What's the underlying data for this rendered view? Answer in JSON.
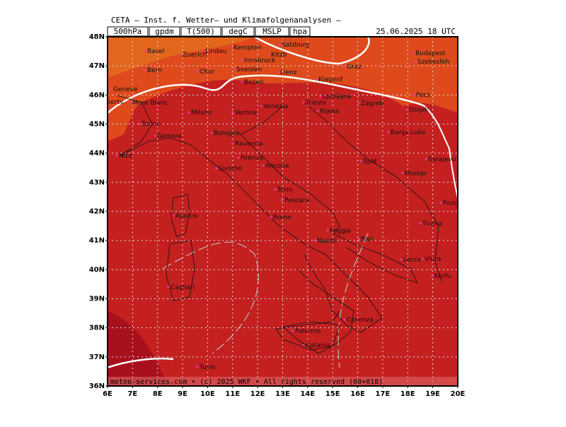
{
  "header": {
    "title": "CETA — Inst. f. Wetter— und Klimafolgenanalysen —",
    "fields": [
      "500hPa",
      "gpdm",
      "T(500)",
      "degC",
      "MSLP",
      "hpa"
    ],
    "timestamp": "25.06.2025 18 UTC"
  },
  "map": {
    "lat_labels": [
      "48N",
      "47N",
      "46N",
      "45N",
      "44N",
      "43N",
      "42N",
      "41N",
      "40N",
      "39N",
      "38N",
      "37N",
      "36N"
    ],
    "lon_labels": [
      "6E",
      "7E",
      "8E",
      "9E",
      "10E",
      "11E",
      "12E",
      "13E",
      "14E",
      "15E",
      "16E",
      "17E",
      "18E",
      "19E",
      "20E"
    ],
    "cities": [
      "Basel",
      "Zuerich",
      "Lindau",
      "Kempten",
      "Salzburg",
      "Budapest",
      "Bern",
      "Chur",
      "Innsbruck",
      "Soelden",
      "Kitzb",
      "Lienz",
      "Graz",
      "Szekesfeh",
      "Geneve",
      "Bozen",
      "Klagenf",
      "Ljubljana",
      "Zagreb",
      "Pecs",
      "Albertv.",
      "Mont Blanc",
      "Milano",
      "Verona",
      "Venezia",
      "Trieste",
      "Rijeka",
      "Osijek",
      "Torino",
      "Bologna",
      "Banja Luka",
      "Genova",
      "Ravenna",
      "Nice",
      "Firenze",
      "Split",
      "Sarajevo",
      "Livorno",
      "Ancona",
      "Mostar",
      "Terni",
      "Pescara",
      "Podgorica",
      "Ajaccio",
      "Rome",
      "Foggia",
      "Tirana",
      "Napoli",
      "Bari",
      "Vlora",
      "Lecce",
      "Korfu",
      "Cagliari",
      "Palermo",
      "Cosenza",
      "Catania",
      "Tunis"
    ],
    "footer": "meteo-services.com • (c) 2025 WKF • All rights reserved (00+018)"
  }
}
